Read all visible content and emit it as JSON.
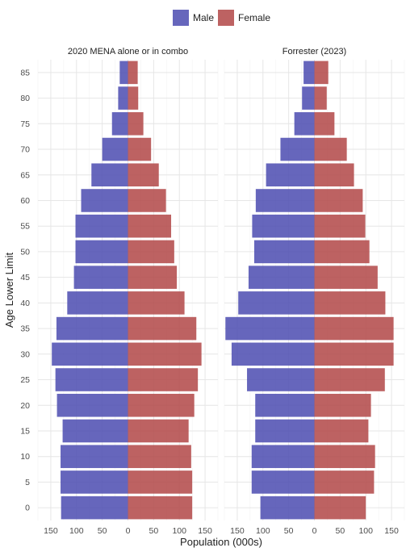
{
  "chart_data": {
    "type": "bar",
    "orientation": "horizontal",
    "layout": "population-pyramid",
    "xlabel": "Population (000s)",
    "ylabel": "Age Lower Limit",
    "xlim": [
      -175,
      175
    ],
    "x_ticks": [
      -150,
      -100,
      -50,
      0,
      50,
      100,
      150
    ],
    "x_tick_labels": [
      "150",
      "100",
      "50",
      "0",
      "50",
      "100",
      "150"
    ],
    "y_ticks": [
      0,
      5,
      10,
      15,
      20,
      25,
      30,
      35,
      40,
      45,
      50,
      55,
      60,
      65,
      70,
      75,
      80,
      85
    ],
    "categories": [
      0,
      5,
      10,
      15,
      20,
      25,
      30,
      35,
      40,
      45,
      50,
      55,
      60,
      65,
      70,
      75,
      80,
      85
    ],
    "grid": true,
    "legend": {
      "position": "top",
      "entries": [
        {
          "label": "Male",
          "color": "#4b4bb0"
        },
        {
          "label": "Female",
          "color": "#b14747"
        }
      ]
    },
    "panels": [
      {
        "title": "2020 MENA alone or in combo",
        "series": [
          {
            "name": "Male",
            "values": [
              130,
              131,
              131,
              127,
              138,
              141,
              148,
              139,
              118,
              105,
              102,
              102,
              91,
              71,
              50,
              31,
              19,
              16
            ]
          },
          {
            "name": "Female",
            "values": [
              125,
              125,
              123,
              118,
              129,
              136,
              143,
              133,
              110,
              95,
              90,
              84,
              74,
              60,
              45,
              30,
              20,
              19
            ]
          }
        ]
      },
      {
        "title": "Forrester (2023)",
        "series": [
          {
            "name": "Male",
            "values": [
              105,
              122,
              122,
              115,
              115,
              131,
              161,
              173,
              148,
              128,
              117,
              121,
              114,
              94,
              66,
              39,
              24,
              21
            ]
          },
          {
            "name": "Female",
            "values": [
              100,
              116,
              118,
              105,
              110,
              137,
              154,
              154,
              138,
              123,
              107,
              99,
              94,
              77,
              63,
              39,
              24,
              27
            ]
          }
        ]
      }
    ]
  }
}
